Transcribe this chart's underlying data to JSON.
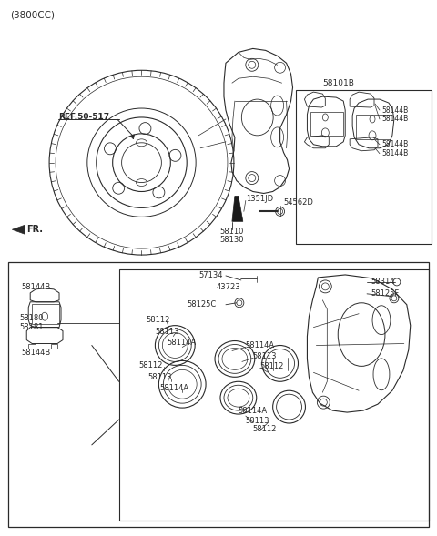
{
  "bg_color": "#ffffff",
  "line_color": "#2a2a2a",
  "text_color": "#2a2a2a",
  "fig_width": 4.8,
  "fig_height": 5.89,
  "dpi": 100,
  "labels": {
    "title": "(3800CC)",
    "ref": "REF.50-517",
    "fr": "FR.",
    "part_1351JD": "1351JD",
    "part_54562D": "54562D",
    "part_58110": "58110",
    "part_58130": "58130",
    "part_58101B": "58101B",
    "part_58144B": "58144B",
    "part_57134": "57134",
    "part_43723": "43723",
    "part_58125C": "58125C",
    "part_58314": "58314",
    "part_58125F": "58125F",
    "part_58112": "58112",
    "part_58113": "58113",
    "part_58114A": "58114A",
    "part_58180": "58180",
    "part_58181": "58181"
  }
}
